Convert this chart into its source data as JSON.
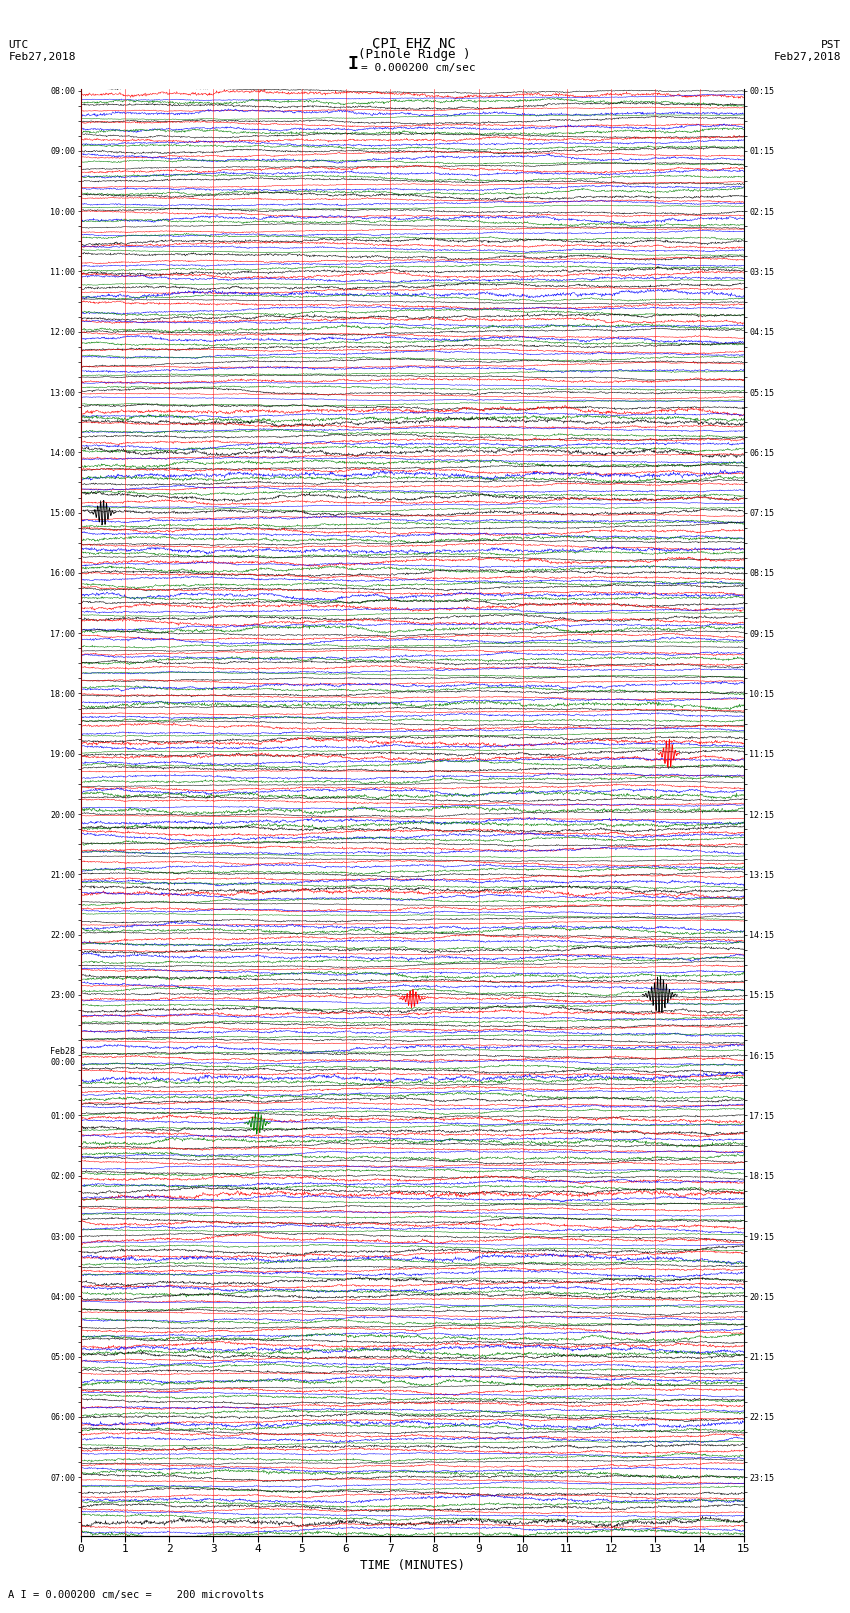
{
  "title_line1": "CPI EHZ NC",
  "title_line2": "(Pinole Ridge )",
  "scale_label": "I = 0.000200 cm/sec",
  "footer_label": "A I = 0.000200 cm/sec =    200 microvolts",
  "utc_label": "UTC\nFeb27,2018",
  "pst_label": "PST\nFeb27,2018",
  "xlabel": "TIME (MINUTES)",
  "left_times_utc": [
    "08:00",
    "",
    "",
    "",
    "09:00",
    "",
    "",
    "",
    "10:00",
    "",
    "",
    "",
    "11:00",
    "",
    "",
    "",
    "12:00",
    "",
    "",
    "",
    "13:00",
    "",
    "",
    "",
    "14:00",
    "",
    "",
    "",
    "15:00",
    "",
    "",
    "",
    "16:00",
    "",
    "",
    "",
    "17:00",
    "",
    "",
    "",
    "18:00",
    "",
    "",
    "",
    "19:00",
    "",
    "",
    "",
    "20:00",
    "",
    "",
    "",
    "21:00",
    "",
    "",
    "",
    "22:00",
    "",
    "",
    "",
    "23:00",
    "",
    "",
    "",
    "Feb28\n00:00",
    "",
    "",
    "",
    "01:00",
    "",
    "",
    "",
    "02:00",
    "",
    "",
    "",
    "03:00",
    "",
    "",
    "",
    "04:00",
    "",
    "",
    "",
    "05:00",
    "",
    "",
    "",
    "06:00",
    "",
    "",
    "",
    "07:00",
    "",
    "",
    ""
  ],
  "right_times_pst": [
    "00:15",
    "",
    "",
    "",
    "01:15",
    "",
    "",
    "",
    "02:15",
    "",
    "",
    "",
    "03:15",
    "",
    "",
    "",
    "04:15",
    "",
    "",
    "",
    "05:15",
    "",
    "",
    "",
    "06:15",
    "",
    "",
    "",
    "07:15",
    "",
    "",
    "",
    "08:15",
    "",
    "",
    "",
    "09:15",
    "",
    "",
    "",
    "10:15",
    "",
    "",
    "",
    "11:15",
    "",
    "",
    "",
    "12:15",
    "",
    "",
    "",
    "13:15",
    "",
    "",
    "",
    "14:15",
    "",
    "",
    "",
    "15:15",
    "",
    "",
    "",
    "16:15",
    "",
    "",
    "",
    "17:15",
    "",
    "",
    "",
    "18:15",
    "",
    "",
    "",
    "19:15",
    "",
    "",
    "",
    "20:15",
    "",
    "",
    "",
    "21:15",
    "",
    "",
    "",
    "22:15",
    "",
    "",
    "",
    "23:15",
    "",
    "",
    ""
  ],
  "n_rows": 96,
  "n_cols": 4,
  "trace_colors": [
    "black",
    "red",
    "blue",
    "green"
  ],
  "bg_color": "white",
  "xmin": 0,
  "xmax": 15,
  "xticks": [
    0,
    1,
    2,
    3,
    4,
    5,
    6,
    7,
    8,
    9,
    10,
    11,
    12,
    13,
    14,
    15
  ],
  "figwidth": 8.5,
  "figheight": 16.13,
  "dpi": 100
}
